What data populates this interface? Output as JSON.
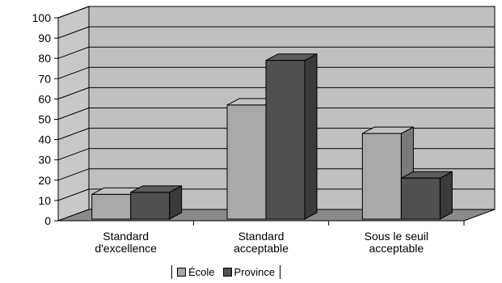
{
  "chart_data": {
    "type": "bar",
    "categories": [
      "Standard\nd'excellence",
      "Standard\nacceptable",
      "Sous le seuil\nacceptable"
    ],
    "series": [
      {
        "name": "École",
        "values": [
          13,
          57,
          43
        ],
        "color": "#a9a9a9"
      },
      {
        "name": "Province",
        "values": [
          14,
          79,
          21
        ],
        "color": "#505050"
      }
    ],
    "ylim": [
      0,
      100
    ],
    "yticks": [
      0,
      10,
      20,
      30,
      40,
      50,
      60,
      70,
      80,
      90,
      100
    ],
    "grid": true,
    "legend_position": "bottom"
  }
}
